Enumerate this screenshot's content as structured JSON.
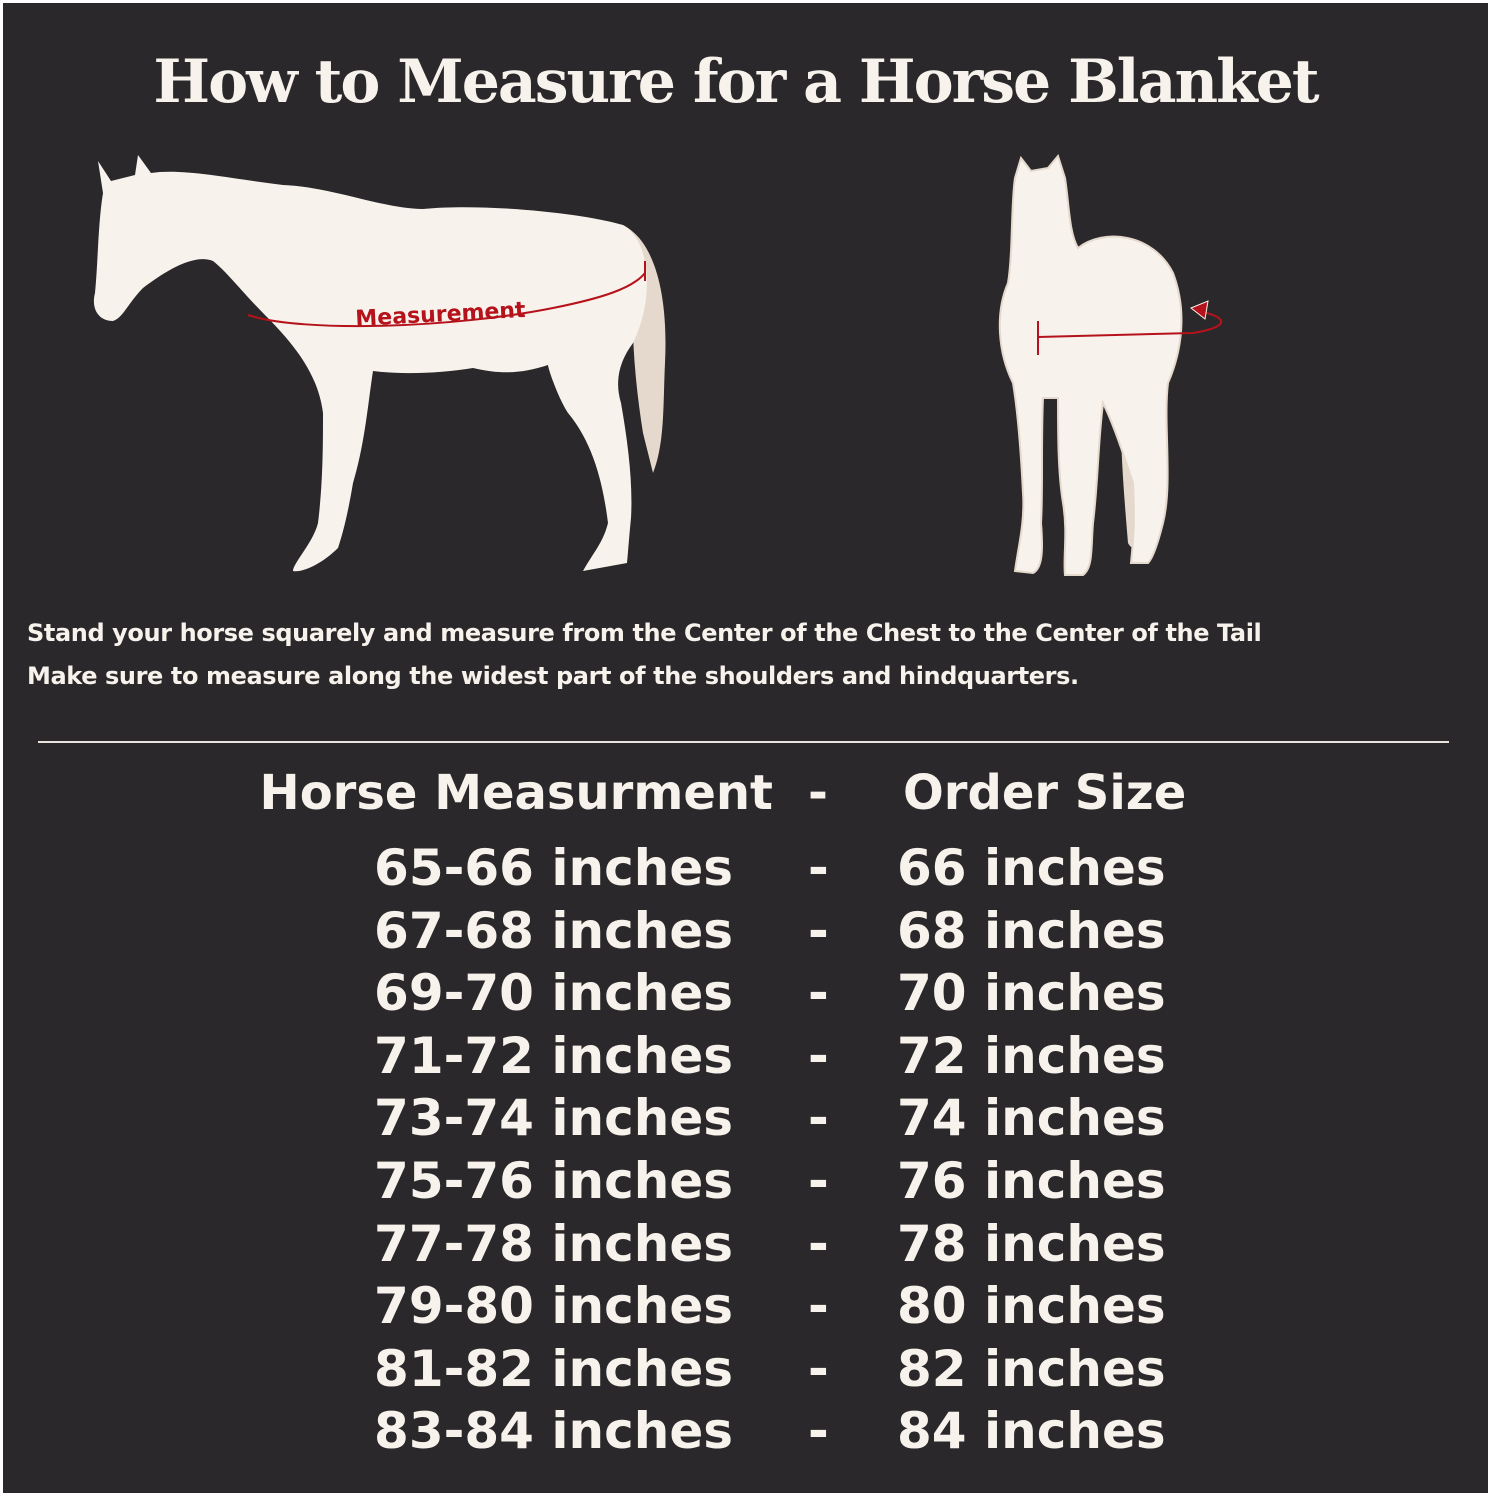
{
  "title": "How to Measure for a Horse Blanket",
  "illustration": {
    "side_label": "Measurement",
    "accent_color": "#b5121b",
    "horse_color": "#f7f2ec",
    "tail_color": "#e4d9cc"
  },
  "instructions": [
    "Stand your horse squarely and measure from the Center of the Chest to the Center of the Tail",
    "Make sure to measure along the widest part of the shoulders and hindquarters."
  ],
  "table": {
    "header": {
      "measurement": "Horse Measurment",
      "separator": "-",
      "size": "Order Size"
    },
    "rows": [
      {
        "measurement": "65-66 inches",
        "separator": "-",
        "size": "66 inches"
      },
      {
        "measurement": "67-68 inches",
        "separator": "-",
        "size": "68 inches"
      },
      {
        "measurement": "69-70 inches",
        "separator": "-",
        "size": "70 inches"
      },
      {
        "measurement": "71-72 inches",
        "separator": "-",
        "size": "72 inches"
      },
      {
        "measurement": "73-74 inches",
        "separator": "-",
        "size": "74 inches"
      },
      {
        "measurement": "75-76 inches",
        "separator": "-",
        "size": "76 inches"
      },
      {
        "measurement": "77-78 inches",
        "separator": "-",
        "size": "78 inches"
      },
      {
        "measurement": "79-80 inches",
        "separator": "-",
        "size": "80 inches"
      },
      {
        "measurement": "81-82 inches",
        "separator": "-",
        "size": "82 inches"
      },
      {
        "measurement": "83-84 inches",
        "separator": "-",
        "size": "84 inches"
      }
    ]
  },
  "colors": {
    "background": "#2a282a",
    "text": "#f7f2ec"
  }
}
